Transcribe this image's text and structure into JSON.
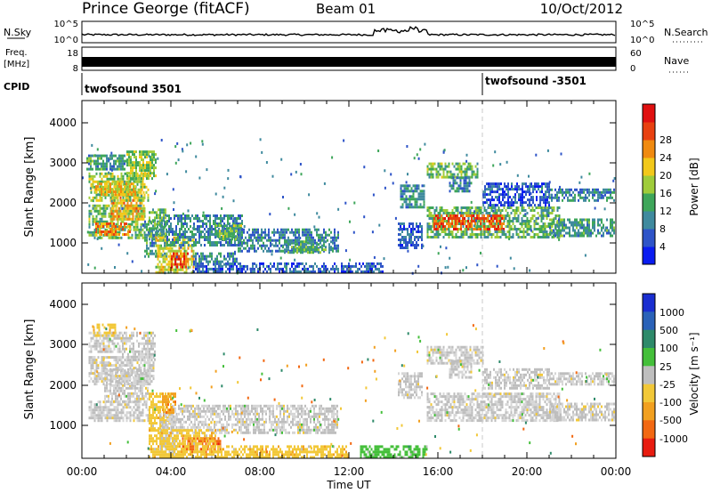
{
  "header": {
    "station": "Prince George (fitACF)",
    "beam": "Beam 01",
    "date": "10/Oct/2012"
  },
  "noise_panel": {
    "left_label": "N.Sky",
    "right_label": "N.Search",
    "left_ticks": [
      "10^5",
      "10^0"
    ],
    "right_ticks": [
      "10^5",
      "10^0"
    ]
  },
  "freq_panel": {
    "left_label_line1": "Freq.",
    "left_label_line2": "[MHz]",
    "left_ticks": [
      "18",
      "8"
    ],
    "right_ticks": [
      "60",
      "0"
    ],
    "right_label": "Nave"
  },
  "cpid_panel": {
    "label": "CPID",
    "entries": [
      {
        "time_h": 0.0,
        "text": "twofsound 3501"
      },
      {
        "time_h": 18.0,
        "text": "twofsound -3501"
      }
    ]
  },
  "chart_data": [
    {
      "type": "heatmap",
      "title": "",
      "xlabel": "Time UT",
      "ylabel": "Slant Range [km]",
      "xlim": [
        0,
        24
      ],
      "ylim": [
        180,
        4500
      ],
      "x_ticks": [
        "00:00",
        "04:00",
        "08:00",
        "12:00",
        "16:00",
        "20:00",
        "00:00"
      ],
      "y_ticks": [
        "1000",
        "2000",
        "3000",
        "4000"
      ],
      "colorbar": {
        "label": "Power [dB]",
        "ticks": [
          "4",
          "8",
          "12",
          "16",
          "20",
          "24",
          "28"
        ],
        "range": [
          0,
          30
        ],
        "colors": [
          "#0a1cf0",
          "#2e54c8",
          "#3f8a9e",
          "#3ea65a",
          "#9fcc3a",
          "#f2c81a",
          "#f08a10",
          "#e84010",
          "#e01010"
        ]
      },
      "bands": [
        {
          "t0": 0.3,
          "t1": 2.8,
          "r0": 1060,
          "r1": 1900,
          "level": 13
        },
        {
          "t0": 0.6,
          "t1": 2.2,
          "r0": 1150,
          "r1": 1450,
          "level": 22
        },
        {
          "t0": 1.3,
          "t1": 2.8,
          "r0": 1500,
          "r1": 2300,
          "level": 20
        },
        {
          "t0": 0.3,
          "t1": 3.0,
          "r0": 2000,
          "r1": 2700,
          "level": 15
        },
        {
          "t0": 0.6,
          "t1": 2.4,
          "r0": 2150,
          "r1": 2450,
          "level": 19
        },
        {
          "t0": 2.0,
          "t1": 3.3,
          "r0": 2550,
          "r1": 3250,
          "level": 14
        },
        {
          "t0": 0.2,
          "t1": 2.0,
          "r0": 2750,
          "r1": 3150,
          "level": 10
        },
        {
          "t0": 2.8,
          "t1": 3.8,
          "r0": 600,
          "r1": 1500,
          "level": 10
        },
        {
          "t0": 3.0,
          "t1": 3.8,
          "r0": 1000,
          "r1": 1800,
          "level": 12
        },
        {
          "t0": 3.3,
          "t1": 5.0,
          "r0": 200,
          "r1": 1100,
          "level": 17
        },
        {
          "t0": 4.0,
          "t1": 4.8,
          "r0": 300,
          "r1": 700,
          "level": 25
        },
        {
          "t0": 3.8,
          "t1": 7.2,
          "r0": 900,
          "r1": 1650,
          "level": 9
        },
        {
          "t0": 6.0,
          "t1": 7.2,
          "r0": 1000,
          "r1": 1400,
          "level": 13
        },
        {
          "t0": 5.0,
          "t1": 7.0,
          "r0": 400,
          "r1": 700,
          "level": 9
        },
        {
          "t0": 7.0,
          "t1": 11.5,
          "r0": 700,
          "r1": 1300,
          "level": 8
        },
        {
          "t0": 9.0,
          "t1": 11.2,
          "r0": 700,
          "r1": 1000,
          "level": 11
        },
        {
          "t0": 5.0,
          "t1": 13.5,
          "r0": 200,
          "r1": 450,
          "level": 6
        },
        {
          "t0": 14.2,
          "t1": 15.3,
          "r0": 800,
          "r1": 1450,
          "level": 6
        },
        {
          "t0": 14.3,
          "t1": 15.4,
          "r0": 1800,
          "r1": 2400,
          "level": 9
        },
        {
          "t0": 15.5,
          "t1": 21.5,
          "r0": 1100,
          "r1": 1850,
          "level": 12
        },
        {
          "t0": 15.8,
          "t1": 19.0,
          "r0": 1250,
          "r1": 1650,
          "level": 24
        },
        {
          "t0": 15.5,
          "t1": 17.8,
          "r0": 2600,
          "r1": 2950,
          "level": 13
        },
        {
          "t0": 16.5,
          "t1": 17.5,
          "r0": 2250,
          "r1": 2600,
          "level": 8
        },
        {
          "t0": 18.0,
          "t1": 21.0,
          "r0": 1900,
          "r1": 2450,
          "level": 5
        },
        {
          "t0": 21.0,
          "t1": 23.9,
          "r0": 1100,
          "r1": 1550,
          "level": 10
        },
        {
          "t0": 21.0,
          "t1": 23.9,
          "r0": 2000,
          "r1": 2300,
          "level": 8
        }
      ]
    },
    {
      "type": "heatmap",
      "title": "",
      "xlabel": "Time UT",
      "ylabel": "Slant Range [km]",
      "xlim": [
        0,
        24
      ],
      "ylim": [
        180,
        4500
      ],
      "x_ticks": [
        "00:00",
        "04:00",
        "08:00",
        "12:00",
        "16:00",
        "20:00",
        "00:00"
      ],
      "y_ticks": [
        "1000",
        "2000",
        "3000",
        "4000"
      ],
      "colorbar": {
        "label": "Velocity [m s⁻¹]",
        "ticks": [
          "1000",
          "500",
          "100",
          "25",
          "-25",
          "-100",
          "-500",
          "-1000"
        ],
        "colors": [
          "#1a2ed0",
          "#2a62b8",
          "#2e8a6a",
          "#44bf3a",
          "#bebebe",
          "#f2c838",
          "#f2a020",
          "#f26812",
          "#e81c10"
        ]
      },
      "bands": [
        {
          "t0": 0.3,
          "t1": 3.0,
          "r0": 1100,
          "r1": 1600,
          "c": 4
        },
        {
          "t0": 1.0,
          "t1": 3.0,
          "r0": 1600,
          "r1": 2400,
          "c": 4
        },
        {
          "t0": 0.3,
          "t1": 3.2,
          "r0": 2000,
          "r1": 2700,
          "c": 4
        },
        {
          "t0": 1.8,
          "t1": 3.3,
          "r0": 2600,
          "r1": 3300,
          "c": 4
        },
        {
          "t0": 0.3,
          "t1": 1.8,
          "r0": 2800,
          "r1": 3300,
          "c": 4
        },
        {
          "t0": 3.0,
          "t1": 4.0,
          "r0": 900,
          "r1": 1800,
          "c": 5
        },
        {
          "t0": 3.5,
          "t1": 4.3,
          "r0": 200,
          "r1": 1300,
          "c": 4
        },
        {
          "t0": 4.0,
          "t1": 11.5,
          "r0": 800,
          "r1": 1500,
          "c": 4
        },
        {
          "t0": 4.5,
          "t1": 6.2,
          "r0": 350,
          "r1": 700,
          "c": 7
        },
        {
          "t0": 3.6,
          "t1": 4.2,
          "r0": 1300,
          "r1": 1800,
          "c": 6
        },
        {
          "t0": 3.0,
          "t1": 6.0,
          "r0": 200,
          "r1": 900,
          "c": 5
        },
        {
          "t0": 6.0,
          "t1": 12.0,
          "r0": 200,
          "r1": 500,
          "c": 5
        },
        {
          "t0": 14.2,
          "t1": 15.3,
          "r0": 1700,
          "r1": 2300,
          "c": 4
        },
        {
          "t0": 15.5,
          "t1": 21.5,
          "r0": 1100,
          "r1": 1800,
          "c": 4
        },
        {
          "t0": 15.5,
          "t1": 18.0,
          "r0": 2500,
          "r1": 2950,
          "c": 4
        },
        {
          "t0": 16.5,
          "t1": 17.5,
          "r0": 2200,
          "r1": 2600,
          "c": 4
        },
        {
          "t0": 18.0,
          "t1": 21.0,
          "r0": 1900,
          "r1": 2400,
          "c": 4
        },
        {
          "t0": 21.0,
          "t1": 23.9,
          "r0": 1100,
          "r1": 1550,
          "c": 4
        },
        {
          "t0": 21.0,
          "t1": 23.9,
          "r0": 2000,
          "r1": 2300,
          "c": 4
        },
        {
          "t0": 12.5,
          "t1": 15.5,
          "r0": 200,
          "r1": 500,
          "c": 3
        },
        {
          "t0": 0.5,
          "t1": 1.5,
          "r0": 3200,
          "r1": 3500,
          "c": 5
        }
      ]
    }
  ]
}
